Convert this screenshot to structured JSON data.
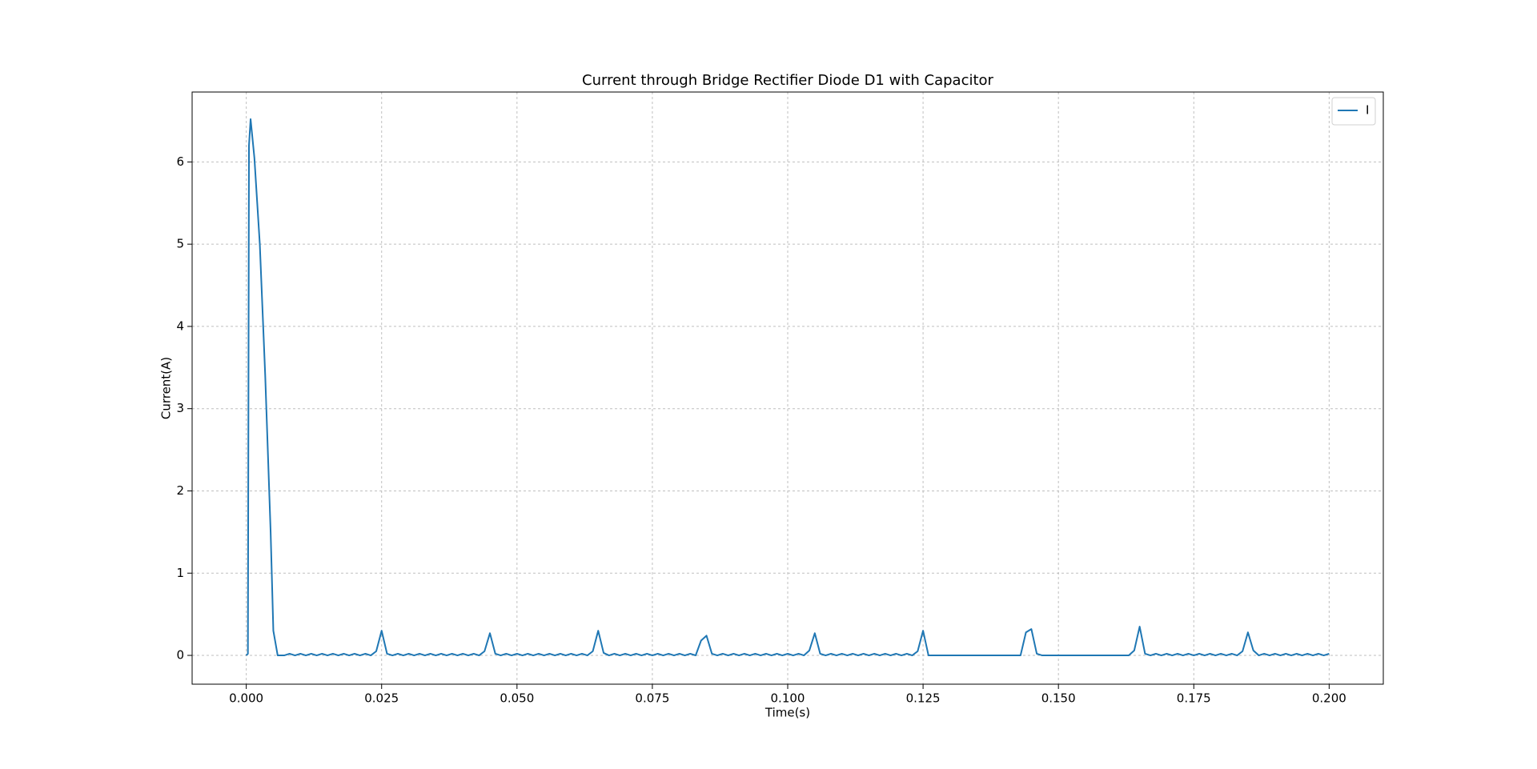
{
  "chart_data": {
    "type": "line",
    "title": "Current through Bridge Rectifier Diode D1 with Capacitor",
    "x_label": "Time(s)",
    "y_label": "Current(A)",
    "xlim": [
      -0.01,
      0.21
    ],
    "ylim": [
      -0.35,
      6.85
    ],
    "xticks": [
      {
        "value": 0,
        "label": "0.000"
      },
      {
        "value": 0.025,
        "label": "0.025"
      },
      {
        "value": 0.05,
        "label": "0.050"
      },
      {
        "value": 0.075,
        "label": "0.075"
      },
      {
        "value": 0.1,
        "label": "0.100"
      },
      {
        "value": 0.125,
        "label": "0.125"
      },
      {
        "value": 0.15,
        "label": "0.150"
      },
      {
        "value": 0.175,
        "label": "0.175"
      },
      {
        "value": 0.2,
        "label": "0.200"
      }
    ],
    "yticks": [
      0,
      1,
      2,
      3,
      4,
      5,
      6
    ],
    "grid": true,
    "legend_loc": "upper right",
    "x": [
      0,
      0.0003,
      0.0005,
      0.0008,
      0.0015,
      0.0025,
      0.0035,
      0.0045,
      0.005,
      0.0058,
      0.007,
      0.008,
      0.009,
      0.01,
      0.011,
      0.012,
      0.013,
      0.014,
      0.015,
      0.016,
      0.017,
      0.018,
      0.019,
      0.02,
      0.021,
      0.022,
      0.023,
      0.024,
      0.025,
      0.026,
      0.027,
      0.028,
      0.029,
      0.03,
      0.031,
      0.032,
      0.033,
      0.034,
      0.035,
      0.036,
      0.037,
      0.038,
      0.039,
      0.04,
      0.041,
      0.042,
      0.043,
      0.044,
      0.045,
      0.046,
      0.047,
      0.048,
      0.049,
      0.05,
      0.051,
      0.052,
      0.053,
      0.054,
      0.055,
      0.056,
      0.057,
      0.058,
      0.059,
      0.06,
      0.061,
      0.062,
      0.063,
      0.064,
      0.065,
      0.066,
      0.067,
      0.068,
      0.069,
      0.07,
      0.071,
      0.072,
      0.073,
      0.074,
      0.075,
      0.076,
      0.077,
      0.078,
      0.079,
      0.08,
      0.081,
      0.082,
      0.083,
      0.084,
      0.085,
      0.086,
      0.087,
      0.088,
      0.089,
      0.09,
      0.091,
      0.092,
      0.093,
      0.094,
      0.095,
      0.096,
      0.097,
      0.098,
      0.099,
      0.1,
      0.101,
      0.102,
      0.103,
      0.104,
      0.105,
      0.106,
      0.107,
      0.108,
      0.109,
      0.11,
      0.111,
      0.112,
      0.113,
      0.114,
      0.115,
      0.116,
      0.117,
      0.118,
      0.119,
      0.12,
      0.121,
      0.122,
      0.123,
      0.124,
      0.125,
      0.126,
      0.127,
      0.128,
      0.129,
      0.13,
      0.131,
      0.132,
      0.133,
      0.134,
      0.135,
      0.136,
      0.137,
      0.138,
      0.139,
      0.14,
      0.141,
      0.142,
      0.143,
      0.144,
      0.145,
      0.146,
      0.147,
      0.148,
      0.149,
      0.15,
      0.151,
      0.152,
      0.153,
      0.154,
      0.155,
      0.156,
      0.157,
      0.158,
      0.159,
      0.16,
      0.161,
      0.162,
      0.163,
      0.164,
      0.165,
      0.166,
      0.167,
      0.168,
      0.169,
      0.17,
      0.171,
      0.172,
      0.173,
      0.174,
      0.175,
      0.176,
      0.177,
      0.178,
      0.179,
      0.18,
      0.181,
      0.182,
      0.183,
      0.184,
      0.185,
      0.186,
      0.187,
      0.188,
      0.189,
      0.19,
      0.191,
      0.192,
      0.193,
      0.194,
      0.195,
      0.196,
      0.197,
      0.198,
      0.199,
      0.2
    ],
    "series": [
      {
        "name": "I",
        "color": "#1f77b4",
        "values": [
          0,
          0.02,
          6.2,
          6.52,
          6.05,
          5.0,
          3.4,
          1.5,
          0.3,
          0,
          0,
          0.02,
          0,
          0.02,
          0,
          0.02,
          0,
          0.02,
          0,
          0.02,
          0,
          0.02,
          0,
          0.02,
          0,
          0.02,
          0,
          0.05,
          0.3,
          0.02,
          0,
          0.02,
          0,
          0.02,
          0,
          0.02,
          0,
          0.02,
          0,
          0.02,
          0,
          0.02,
          0,
          0.02,
          0,
          0.02,
          0,
          0.05,
          0.27,
          0.02,
          0,
          0.02,
          0,
          0.02,
          0,
          0.02,
          0,
          0.02,
          0,
          0.02,
          0,
          0.02,
          0,
          0.02,
          0,
          0.02,
          0,
          0.05,
          0.3,
          0.03,
          0,
          0.02,
          0,
          0.02,
          0,
          0.02,
          0,
          0.02,
          0,
          0.02,
          0,
          0.02,
          0,
          0.02,
          0,
          0.02,
          0,
          0.18,
          0.24,
          0.02,
          0,
          0.02,
          0,
          0.02,
          0,
          0.02,
          0,
          0.02,
          0,
          0.02,
          0,
          0.02,
          0,
          0.02,
          0,
          0.02,
          0,
          0.06,
          0.27,
          0.02,
          0,
          0.02,
          0,
          0.02,
          0,
          0.02,
          0,
          0.02,
          0,
          0.02,
          0,
          0.02,
          0,
          0.02,
          0,
          0.02,
          0,
          0.05,
          0.3,
          0,
          0,
          0,
          0,
          0,
          0,
          0,
          0,
          0,
          0,
          0,
          0,
          0,
          0,
          0,
          0,
          0,
          0,
          0.28,
          0.32,
          0.02,
          0,
          0,
          0,
          0,
          0,
          0,
          0,
          0,
          0,
          0,
          0,
          0,
          0,
          0,
          0,
          0,
          0,
          0.06,
          0.35,
          0.02,
          0,
          0.02,
          0,
          0.02,
          0,
          0.02,
          0,
          0.02,
          0,
          0.02,
          0,
          0.02,
          0,
          0.02,
          0,
          0.02,
          0,
          0.05,
          0.28,
          0.06,
          0,
          0.02,
          0,
          0.02,
          0,
          0.02,
          0,
          0.02,
          0,
          0.02,
          0,
          0.02,
          0,
          0.02
        ]
      }
    ]
  }
}
